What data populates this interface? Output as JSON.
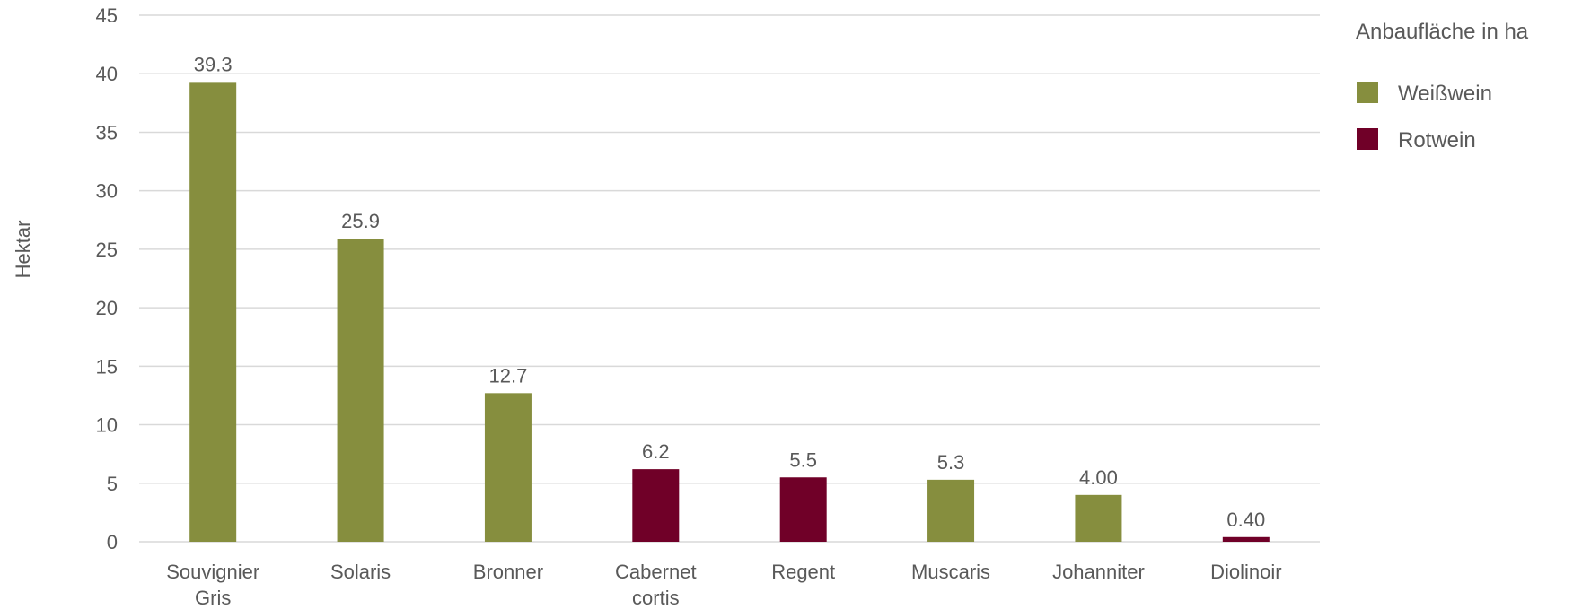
{
  "chart_data": {
    "type": "bar",
    "ylabel": "Hektar",
    "ylim": [
      0,
      45
    ],
    "yticks": [
      "0",
      "5",
      "10",
      "15",
      "20",
      "25",
      "30",
      "35",
      "40",
      "45"
    ],
    "grid": true,
    "categories": [
      [
        "Souvignier",
        "Gris"
      ],
      [
        "Solaris"
      ],
      [
        "Bronner"
      ],
      [
        "Cabernet",
        "cortis"
      ],
      [
        "Regent"
      ],
      [
        "Muscaris"
      ],
      [
        "Johanniter"
      ],
      [
        "Diolinoir"
      ]
    ],
    "values": [
      39.3,
      25.9,
      12.7,
      6.2,
      5.5,
      5.3,
      4.0,
      0.4
    ],
    "value_labels": [
      "39.3",
      "25.9",
      "12.7",
      "6.2",
      "5.5",
      "5.3",
      "4.00",
      "0.40"
    ],
    "series_of_bar": [
      0,
      0,
      0,
      1,
      1,
      0,
      0,
      1
    ],
    "legend": {
      "title": "Anbaufläche in ha",
      "placement": "top-right",
      "entries": [
        {
          "name": "Weißwein",
          "color": "#868e3e"
        },
        {
          "name": "Rotwein",
          "color": "#700028"
        }
      ]
    }
  }
}
